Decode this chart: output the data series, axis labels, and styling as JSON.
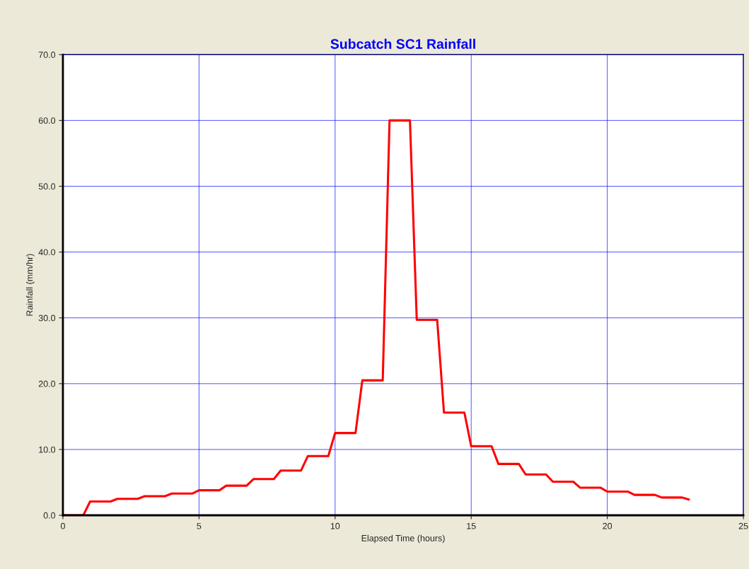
{
  "chart_data": {
    "type": "line",
    "title": "Subcatch SC1 Rainfall",
    "xlabel": "Elapsed Time (hours)",
    "ylabel": "Rainfall (mm/hr)",
    "x": [
      0,
      0.75,
      1,
      1.75,
      2,
      2.75,
      3,
      3.75,
      4,
      4.75,
      5,
      5.75,
      6,
      6.75,
      7,
      7.75,
      8,
      8.75,
      9,
      9.75,
      10,
      10.75,
      11,
      11.75,
      12,
      12.75,
      13,
      13.75,
      14,
      14.75,
      15,
      15.75,
      16,
      16.75,
      17,
      17.75,
      18,
      18.75,
      19,
      19.75,
      20,
      20.75,
      21,
      21.75,
      22,
      22.75,
      23
    ],
    "series": [
      {
        "color": "#ff0000",
        "values": [
          0,
          0,
          2.1,
          2.1,
          2.5,
          2.5,
          2.9,
          2.9,
          3.3,
          3.3,
          3.8,
          3.8,
          4.5,
          4.5,
          5.5,
          5.5,
          6.8,
          6.8,
          9.0,
          9.0,
          12.5,
          12.5,
          20.5,
          20.5,
          60.0,
          60.0,
          29.7,
          29.7,
          15.6,
          15.6,
          10.5,
          10.5,
          7.8,
          7.8,
          6.2,
          6.2,
          5.1,
          5.1,
          4.2,
          4.2,
          3.6,
          3.6,
          3.1,
          3.1,
          2.7,
          2.7,
          2.4
        ]
      }
    ],
    "xlim": [
      0,
      25
    ],
    "xticks": [
      0,
      5,
      10,
      15,
      20,
      25
    ],
    "ylim": [
      0,
      70
    ],
    "yticks": [
      {
        "value": 0,
        "label": "0.0"
      },
      {
        "value": 10,
        "label": "10.0"
      },
      {
        "value": 20,
        "label": "20.0"
      },
      {
        "value": 30,
        "label": "30.0"
      },
      {
        "value": 40,
        "label": "40.0"
      },
      {
        "value": 50,
        "label": "50.0"
      },
      {
        "value": 60,
        "label": "60.0"
      },
      {
        "value": 70,
        "label": "70.0"
      }
    ],
    "grid": true,
    "legend": false,
    "marker": "none",
    "line_style": "solid"
  }
}
